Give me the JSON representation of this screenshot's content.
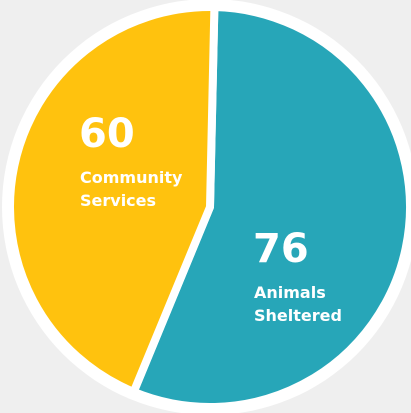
{
  "chart_data": {
    "type": "pie",
    "slices": [
      {
        "label_lines": [
          "Animals",
          "Sheltered"
        ],
        "value": 76,
        "display": "76",
        "color": "#27a6b8"
      },
      {
        "label_lines": [
          "Community",
          "Services"
        ],
        "value": 60,
        "display": "60",
        "color": "#ffc20e"
      }
    ],
    "background": "#efefef",
    "separator_color": "#ffffff"
  }
}
